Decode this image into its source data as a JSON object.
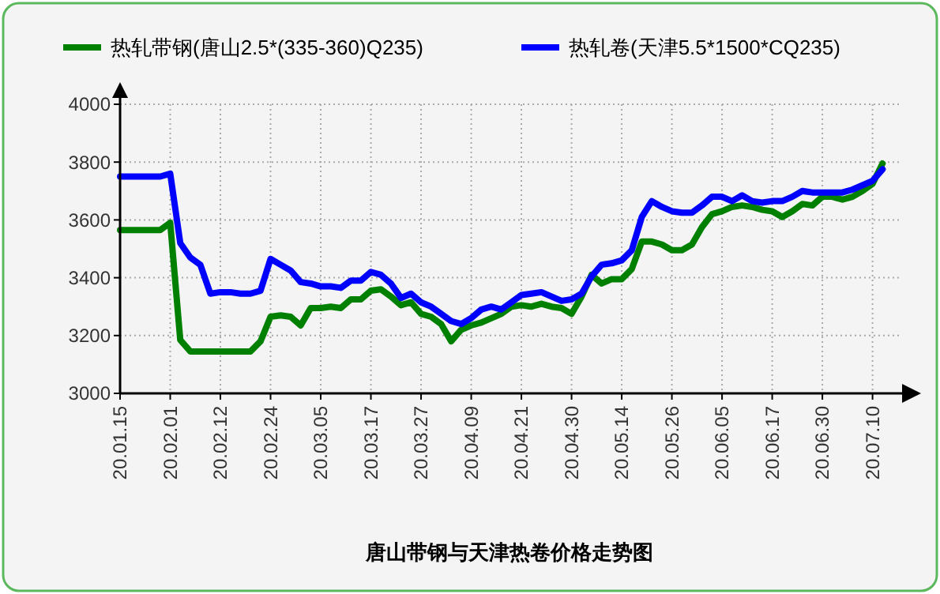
{
  "chart_data": {
    "type": "line",
    "title": "唐山带钢与天津热卷价格走势图",
    "categories": [
      "20.01.15",
      null,
      null,
      null,
      null,
      "20.02.01",
      null,
      null,
      null,
      null,
      "20.02.12",
      null,
      null,
      null,
      null,
      "20.02.24",
      null,
      null,
      null,
      null,
      "20.03.05",
      null,
      null,
      null,
      null,
      "20.03.17",
      null,
      null,
      null,
      null,
      "20.03.27",
      null,
      null,
      null,
      null,
      "20.04.09",
      null,
      null,
      null,
      null,
      "20.04.21",
      null,
      null,
      null,
      null,
      "20.04.30",
      null,
      null,
      null,
      null,
      "20.05.14",
      null,
      null,
      null,
      null,
      "20.05.26",
      null,
      null,
      null,
      null,
      "20.06.05",
      null,
      null,
      null,
      null,
      "20.06.17",
      null,
      null,
      null,
      null,
      "20.06.30",
      null,
      null,
      null,
      null,
      "20.07.10",
      null,
      null
    ],
    "ylim": [
      3000,
      4000
    ],
    "yticks": [
      3000,
      3200,
      3400,
      3600,
      3800,
      4000
    ],
    "grid": true,
    "legend": "top",
    "marker": "none",
    "line_style": "solid",
    "series": [
      {
        "name": "热轧带钢(唐山2.5*(335-360)Q235)",
        "color": "#008000",
        "values": [
          3565,
          3565,
          3565,
          3565,
          3565,
          3590,
          3185,
          3145,
          3145,
          3145,
          3145,
          3145,
          3145,
          3145,
          3180,
          3265,
          3270,
          3265,
          3235,
          3295,
          3295,
          3300,
          3295,
          3325,
          3325,
          3355,
          3360,
          3335,
          3305,
          3315,
          3275,
          3265,
          3240,
          3180,
          3220,
          3235,
          3245,
          3260,
          3275,
          3300,
          3305,
          3300,
          3310,
          3300,
          3295,
          3275,
          3335,
          3410,
          3380,
          3395,
          3395,
          3430,
          3525,
          3525,
          3515,
          3495,
          3495,
          3515,
          3575,
          3620,
          3630,
          3645,
          3650,
          3645,
          3635,
          3630,
          3610,
          3630,
          3655,
          3650,
          3680,
          3680,
          3670,
          3680,
          3700,
          3725,
          3795,
          null
        ]
      },
      {
        "name": "热轧卷(天津5.5*1500*CQ235)",
        "color": "#0000ff",
        "values": [
          3750,
          3750,
          3750,
          3750,
          3750,
          3760,
          3520,
          3470,
          3445,
          3345,
          3350,
          3350,
          3345,
          3345,
          3355,
          3465,
          3445,
          3425,
          3385,
          3380,
          3370,
          3370,
          3365,
          3390,
          3390,
          3420,
          3410,
          3380,
          3330,
          3345,
          3315,
          3300,
          3275,
          3250,
          3240,
          3260,
          3290,
          3300,
          3290,
          3315,
          3340,
          3345,
          3350,
          3335,
          3320,
          3325,
          3345,
          3405,
          3445,
          3450,
          3460,
          3495,
          3610,
          3665,
          3645,
          3630,
          3625,
          3625,
          3650,
          3680,
          3680,
          3665,
          3685,
          3665,
          3660,
          3665,
          3665,
          3680,
          3700,
          3695,
          3695,
          3695,
          3695,
          3705,
          3720,
          3735,
          3775,
          null
        ]
      }
    ]
  }
}
